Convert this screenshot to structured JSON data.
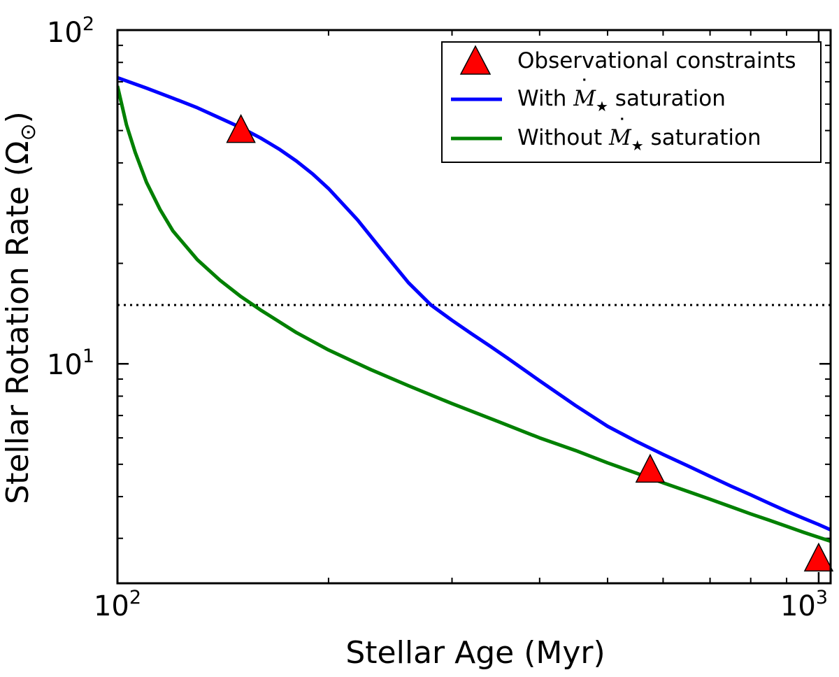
{
  "chart_data": {
    "type": "line",
    "xlabel": "Stellar Age (Myr)",
    "ylabel": "Stellar Rotation Rate (Ω",
    "ylabel_sub": "⊙",
    "ylabel_close": ")",
    "xscale": "log",
    "yscale": "log",
    "xlim": [
      100,
      1040
    ],
    "ylim": [
      2.2,
      100
    ],
    "x_ticks": [
      {
        "value": 100,
        "base": "10",
        "exp": "2"
      },
      {
        "value": 1000,
        "base": "10",
        "exp": "3"
      }
    ],
    "y_ticks": [
      {
        "value": 10,
        "base": "10",
        "exp": "1"
      },
      {
        "value": 100,
        "base": "10",
        "exp": "2"
      }
    ],
    "grid": false,
    "legend_position": "top-right",
    "reference_line": {
      "y": 15,
      "style": "dotted",
      "color": "#000000"
    },
    "series": [
      {
        "name": "With Ṁ★ saturation",
        "legend_prefix": "With ",
        "legend_suffix": " saturation",
        "color": "#0000ff",
        "x": [
          100,
          110,
          120,
          130,
          140,
          150,
          160,
          170,
          180,
          190,
          200,
          220,
          240,
          260,
          280,
          300,
          320,
          340,
          360,
          380,
          400,
          450,
          500,
          550,
          600,
          650,
          700,
          750,
          800,
          850,
          900,
          950,
          1000,
          1040
        ],
        "y": [
          72,
          67,
          62.5,
          58.5,
          54.5,
          51,
          47.5,
          44,
          40.5,
          37,
          33.5,
          27,
          21.5,
          17.5,
          15,
          13.5,
          12.3,
          11.3,
          10.4,
          9.6,
          8.9,
          7.5,
          6.5,
          5.85,
          5.35,
          4.95,
          4.6,
          4.3,
          4.05,
          3.82,
          3.62,
          3.45,
          3.3,
          3.18
        ]
      },
      {
        "name": "Without Ṁ★ saturation",
        "legend_prefix": "Without ",
        "legend_suffix": " saturation",
        "color": "#008000",
        "x": [
          100,
          103,
          106,
          110,
          115,
          120,
          130,
          140,
          150,
          160,
          180,
          200,
          230,
          260,
          300,
          350,
          400,
          450,
          500,
          550,
          600,
          650,
          700,
          750,
          800,
          850,
          900,
          950,
          1000,
          1040
        ],
        "y": [
          68,
          52,
          43,
          35,
          29,
          25,
          20.5,
          17.8,
          15.9,
          14.5,
          12.4,
          11,
          9.6,
          8.6,
          7.6,
          6.7,
          6.0,
          5.5,
          5.05,
          4.7,
          4.4,
          4.15,
          3.93,
          3.73,
          3.55,
          3.4,
          3.26,
          3.13,
          3.02,
          2.94
        ]
      }
    ],
    "observations": {
      "name": "Observational constraints",
      "color": "#ff0000",
      "marker": "triangle",
      "points": [
        {
          "x": 150,
          "y": 50
        },
        {
          "x": 575,
          "y": 4.8
        },
        {
          "x": 1000,
          "y": 2.6
        }
      ]
    },
    "legend_math": {
      "M": "M",
      "dot": "˙",
      "star": "★"
    }
  }
}
